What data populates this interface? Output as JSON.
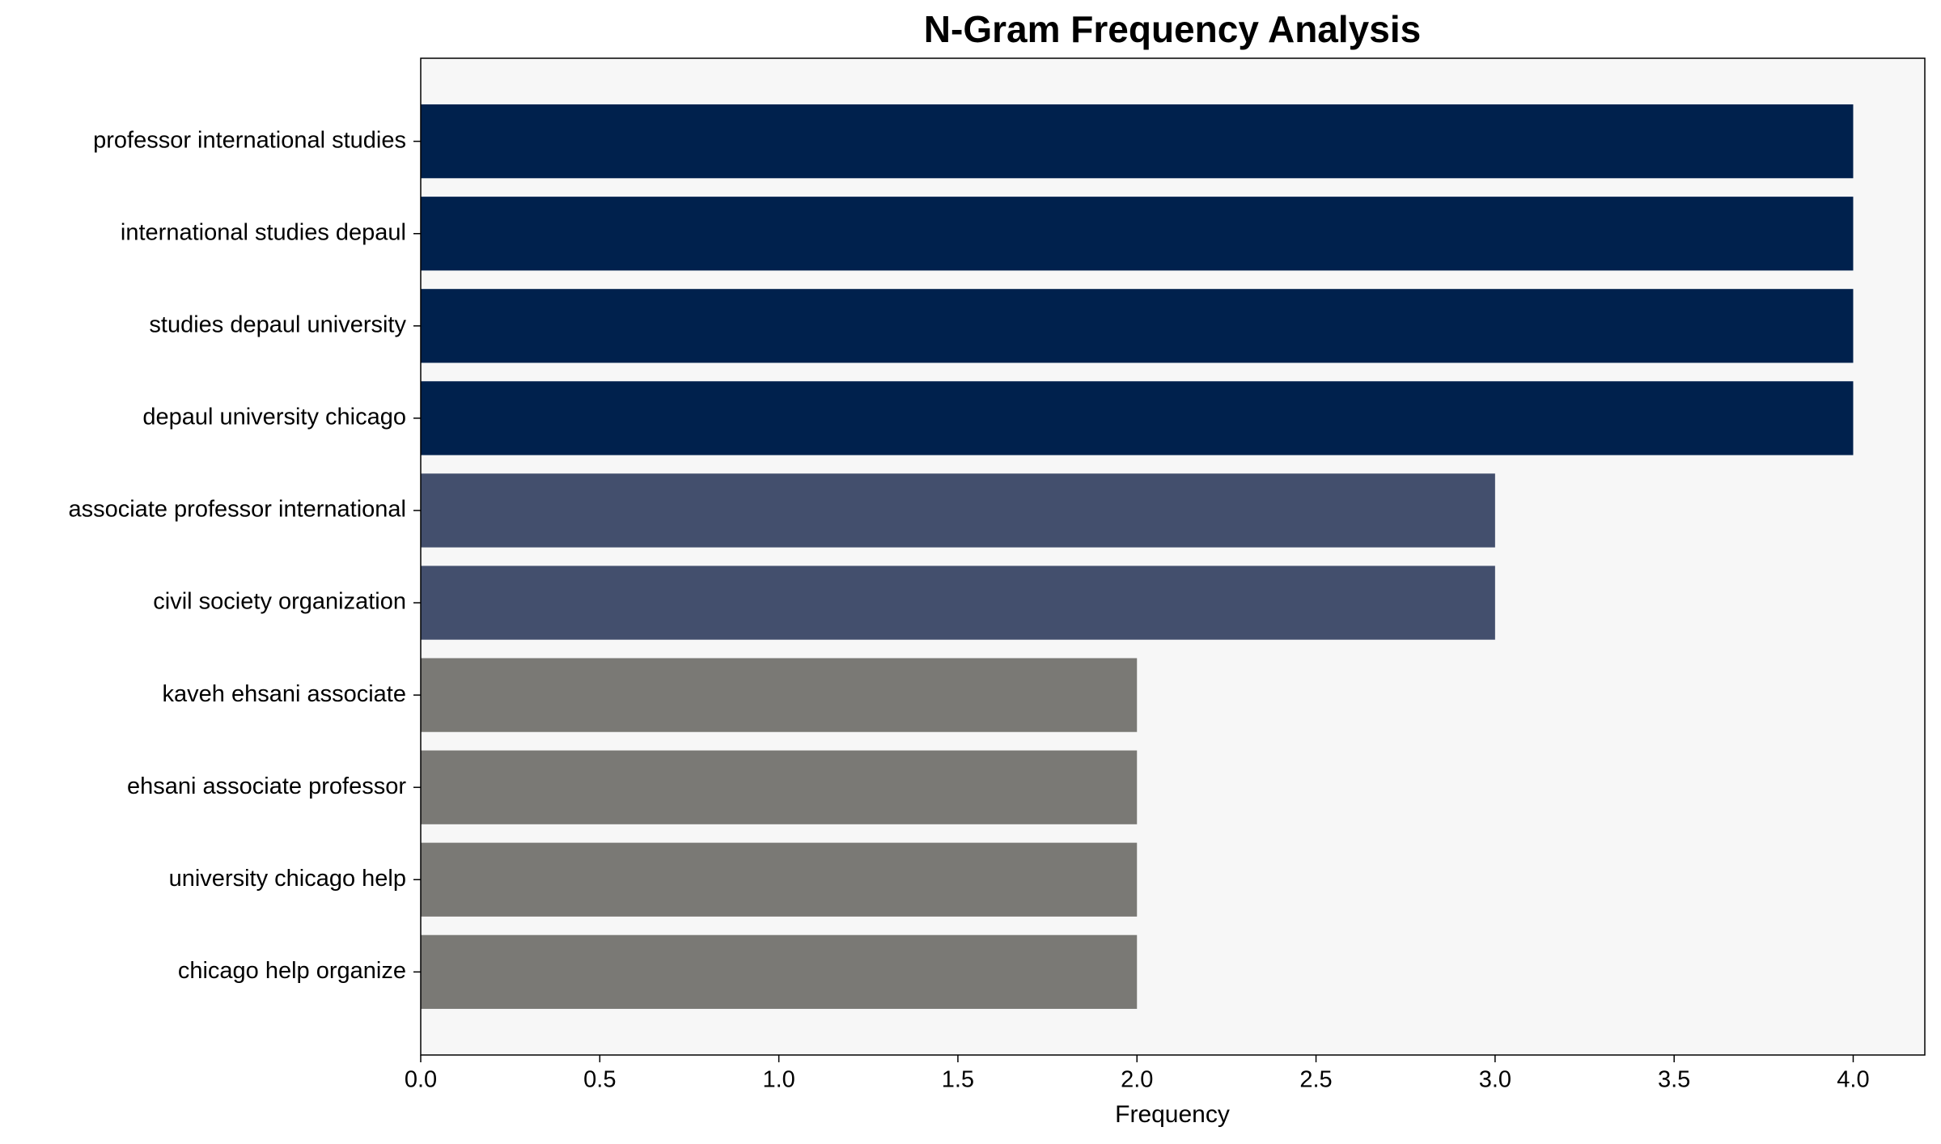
{
  "chart_data": {
    "type": "hbar",
    "title": "N-Gram Frequency Analysis",
    "x_label": "Frequency",
    "categories": [
      "professor international studies",
      "international studies depaul",
      "studies depaul university",
      "depaul university chicago",
      "associate professor international",
      "civil society organization",
      "kaveh ehsani associate",
      "ehsani associate professor",
      "university chicago help",
      "chicago help organize"
    ],
    "values": [
      4,
      4,
      4,
      4,
      3,
      3,
      2,
      2,
      2,
      2
    ],
    "colors": [
      "#00214d",
      "#00214d",
      "#00214d",
      "#00214d",
      "#434f6d",
      "#434f6d",
      "#7a7975",
      "#7a7975",
      "#7a7975",
      "#7a7975"
    ],
    "xlim": [
      0,
      4.2
    ],
    "xticks": [
      {
        "value": 0,
        "label": "0.0"
      },
      0.5,
      {
        "value": 1,
        "label": "1.0"
      },
      1.5,
      {
        "value": 2,
        "label": "2.0"
      },
      2.5,
      {
        "value": 3,
        "label": "3.0"
      },
      3.5,
      {
        "value": 4,
        "label": "4.0"
      }
    ],
    "background": "#f7f7f7"
  }
}
